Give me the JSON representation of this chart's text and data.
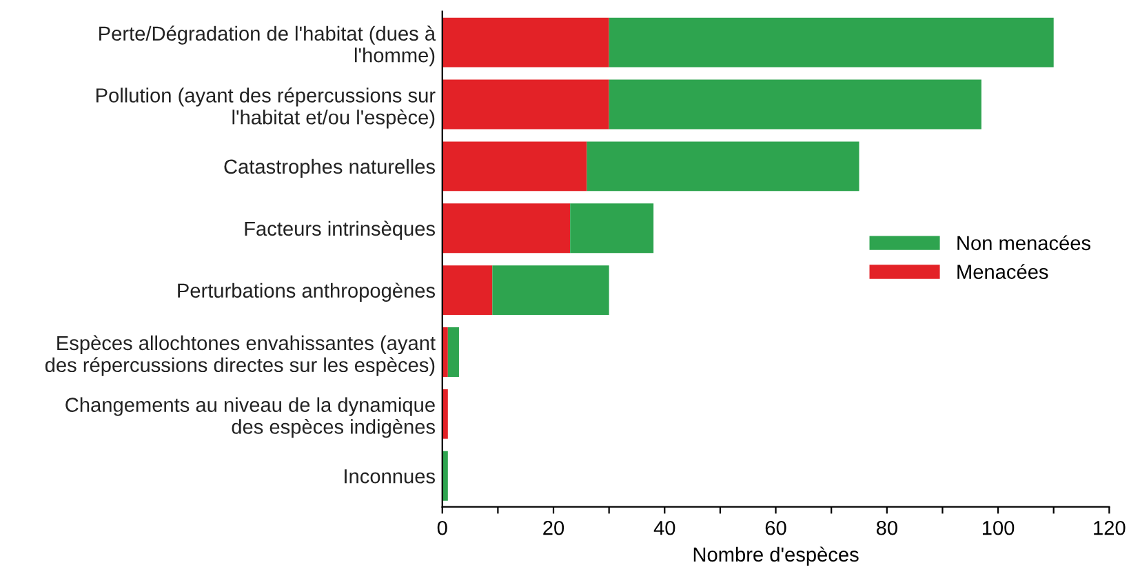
{
  "chart_data": {
    "type": "bar",
    "orientation": "horizontal",
    "stacked": true,
    "categories": [
      "Perte/Dégradation de l'habitat (dues à\nl'homme)",
      "Pollution (ayant des répercussions sur\nl'habitat et/ou l'espèce)",
      "Catastrophes naturelles",
      "Facteurs intrinsèques",
      "Perturbations anthropogènes",
      "Espèces allochtones envahissantes (ayant\ndes répercussions directes sur les espèces)",
      "Changements au niveau de la dynamique\ndes espèces indigènes",
      "Inconnues"
    ],
    "series": [
      {
        "name": "Menacées",
        "color": "#e32227",
        "values": [
          30,
          30,
          26,
          23,
          9,
          1,
          1,
          0
        ]
      },
      {
        "name": "Non menacées",
        "color": "#2ea44f",
        "values": [
          80,
          67,
          49,
          15,
          21,
          2,
          0,
          1
        ]
      }
    ],
    "xlabel": "Nombre d'espèces",
    "xlim": [
      0,
      120
    ],
    "xticks": [
      0,
      {
        "value": 10,
        "label": null
      },
      20,
      {
        "value": 30,
        "label": null
      },
      40,
      {
        "value": 50,
        "label": null
      },
      60,
      {
        "value": 70,
        "label": null
      },
      80,
      {
        "value": 90,
        "label": null
      },
      100,
      {
        "value": 110,
        "label": null
      },
      120
    ],
    "legend": "right",
    "grid": false
  }
}
